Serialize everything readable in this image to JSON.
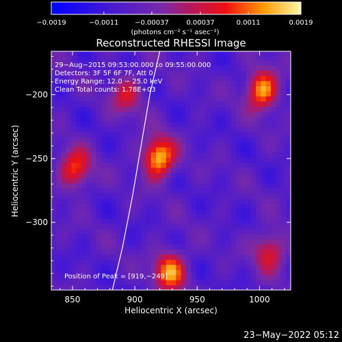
{
  "chart_data": {
    "type": "heatmap",
    "title": "Reconstructed RHESSI Image",
    "xlabel": "Heliocentric X (arcsec)",
    "ylabel": "Heliocentric Y (arcsec)",
    "xlim": [
      833,
      1025
    ],
    "ylim": [
      -353,
      -166
    ],
    "x_ticks": [
      850,
      900,
      950,
      1000
    ],
    "x_tick_labels": [
      "850",
      "900",
      "950",
      "1000"
    ],
    "y_ticks": [
      -200,
      -250,
      -300
    ],
    "y_tick_labels": [
      "−200",
      "−250",
      "−300"
    ],
    "colorbar": {
      "min": -0.0019,
      "max": 0.0019,
      "ticks": [
        -0.0019,
        -0.0011,
        -0.00037,
        0.00037,
        0.0011,
        0.0019
      ],
      "tick_labels": [
        "−0.0019",
        "−0.0011",
        "−0.00037",
        "0.00037",
        "0.0011",
        "0.0019"
      ],
      "units": "(photons cm⁻² s⁻¹ asec⁻²)"
    },
    "sources": [
      {
        "x": 919,
        "y": -249,
        "peak": 0.0019
      },
      {
        "x": 1002,
        "y": -196,
        "peak": 0.0017
      },
      {
        "x": 928,
        "y": -338,
        "peak": 0.0016
      },
      {
        "x": 852,
        "y": -258,
        "peak": 0.0013
      },
      {
        "x": 893,
        "y": -200,
        "peak": 0.0009
      },
      {
        "x": 1008,
        "y": -322,
        "peak": 0.0011
      }
    ],
    "limb_curve": [
      [
        920,
        -166
      ],
      [
        912,
        -200
      ],
      [
        905,
        -240
      ],
      [
        898,
        -280
      ],
      [
        890,
        -320
      ],
      [
        882,
        -353
      ]
    ],
    "annotations": [
      "29−Aug−2015 09:53:00.000 to 09:55:00.000",
      "Detectors: 3F 5F 6F 7F, Att 0",
      "Energy Range: 12.0 − 25.0 keV",
      "Clean    Total counts: 1.78E+03"
    ],
    "peak_label": "Position of Peak = [919,−249]"
  },
  "timestamp": "23−May−2022 05:12"
}
